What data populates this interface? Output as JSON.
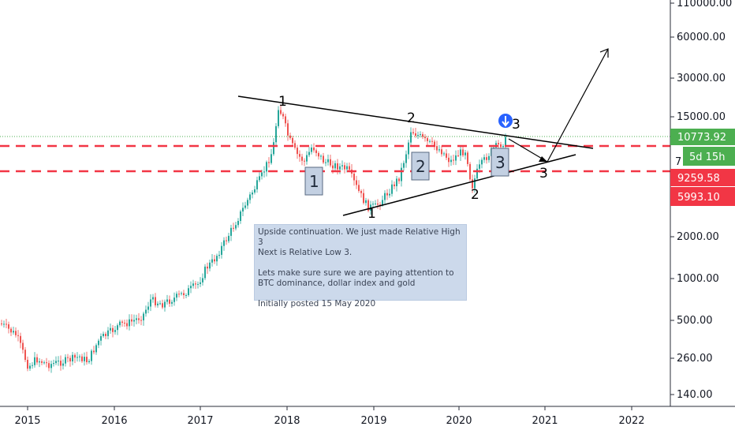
{
  "price_axis": {
    "labels": [
      "110000.00",
      "60000.00",
      "30000.00",
      "15000.00",
      "2000.00",
      "1000.00",
      "500.00",
      "260.00",
      "140.00"
    ]
  },
  "time_axis": {
    "labels": [
      "2015",
      "2016",
      "2017",
      "2018",
      "2019",
      "2020",
      "2021",
      "2022"
    ]
  },
  "price_tags": {
    "last_price": "10773.92",
    "countdown": "5d 15h",
    "level_upper": "9259.58",
    "level_lower": "5993.10",
    "partial_label": "7"
  },
  "wave_labels": {
    "high_1": "1",
    "high_2": "2",
    "high_3": "3",
    "low_1": "1",
    "low_2": "2",
    "low_3": "3",
    "box_1": "1",
    "box_2": "2",
    "box_3": "3"
  },
  "note": {
    "line1": "Upside continuation. We just made Relative High 3",
    "line2": "Next is Relative Low 3.",
    "line3": "Lets make sure sure we are paying attention to",
    "line4": "BTC dominance, dollar index and gold",
    "line5": "Initially posted 15 May 2020"
  },
  "colors": {
    "up_candle": "#26a69a",
    "down_candle": "#ef5350",
    "last_price_tag": "#4caf50",
    "level_tag": "#f23645",
    "dashed_level": "#f23645",
    "note_bg": "#c8d6ea",
    "box_fill": "#c3d0e2",
    "signal_icon": "#2962ff"
  },
  "icons": {
    "signal": "arrow-down-circle-icon"
  }
}
